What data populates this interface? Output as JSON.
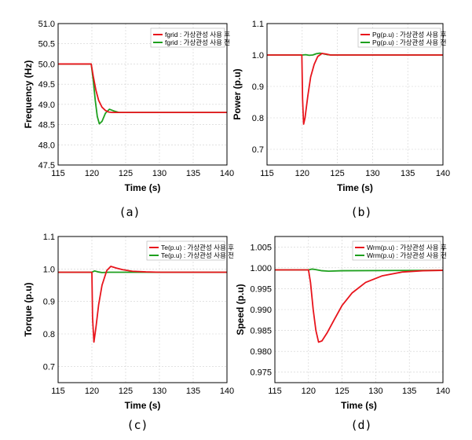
{
  "colors": {
    "red_series": "#e8141c",
    "green_series": "#1ea01e",
    "grid": "#d0d0d0",
    "frame": "#000000"
  },
  "chart_data": [
    {
      "id": "a",
      "type": "line",
      "caption": "(a)",
      "xlabel": "Time (s)",
      "ylabel": "Frequency (Hz)",
      "xlim": [
        115,
        140
      ],
      "ylim": [
        47.5,
        51.0
      ],
      "xticks": [
        "115",
        "120",
        "125",
        "130",
        "135",
        "140"
      ],
      "yticks": [
        "47.5",
        "48.0",
        "48.5",
        "49.0",
        "49.5",
        "50.0",
        "50.5",
        "51.0"
      ],
      "grid": true,
      "legend_position": "top-right",
      "series": [
        {
          "name": "fgrid : 가상관성 사용 후",
          "color": "red",
          "x": [
            115,
            119.9,
            120.2,
            120.6,
            121.0,
            121.5,
            122.0,
            122.5,
            123.0,
            124.0,
            140
          ],
          "y": [
            50.0,
            50.0,
            49.7,
            49.35,
            49.1,
            48.93,
            48.85,
            48.81,
            48.8,
            48.8,
            48.8
          ]
        },
        {
          "name": "fgrid : 가상관성 사용 전",
          "color": "green",
          "x": [
            115,
            119.9,
            120.2,
            120.5,
            120.8,
            121.1,
            121.5,
            122.0,
            122.6,
            123.2,
            124.0,
            125.0,
            140
          ],
          "y": [
            50.0,
            50.0,
            49.6,
            49.1,
            48.7,
            48.52,
            48.58,
            48.78,
            48.88,
            48.84,
            48.8,
            48.8,
            48.8
          ]
        }
      ]
    },
    {
      "id": "b",
      "type": "line",
      "caption": "(b)",
      "xlabel": "Time (s)",
      "ylabel": "Power (p.u)",
      "xlim": [
        115,
        140
      ],
      "ylim": [
        0.65,
        1.1
      ],
      "xticks": [
        "115",
        "120",
        "125",
        "130",
        "135",
        "140"
      ],
      "yticks": [
        "0.7",
        "0.8",
        "0.9",
        "1.0",
        "1.1"
      ],
      "grid": true,
      "legend_position": "top-right",
      "series": [
        {
          "name": "Pg(p.u) : 가상관성 사용 후",
          "color": "red",
          "x": [
            115,
            119.95,
            120.05,
            120.2,
            120.4,
            120.8,
            121.2,
            121.7,
            122.2,
            122.8,
            123.4,
            124.0,
            140
          ],
          "y": [
            1.0,
            1.0,
            0.86,
            0.78,
            0.8,
            0.87,
            0.93,
            0.97,
            0.995,
            1.005,
            1.003,
            1.0,
            1.0
          ]
        },
        {
          "name": "Pg(p.u) : 가상관성 사용 전",
          "color": "green",
          "x": [
            115,
            120.0,
            120.5,
            121.0,
            121.5,
            122.0,
            122.5,
            123.0,
            123.6,
            124.2,
            140
          ],
          "y": [
            1.0,
            1.0,
            1.001,
            0.999,
            1.0,
            1.004,
            1.006,
            1.004,
            1.001,
            1.0,
            1.0
          ]
        }
      ]
    },
    {
      "id": "c",
      "type": "line",
      "caption": "(c)",
      "xlabel": "Time (s)",
      "ylabel": "Torque (p.u)",
      "xlim": [
        115,
        140
      ],
      "ylim": [
        0.65,
        1.1
      ],
      "xticks": [
        "115",
        "120",
        "125",
        "130",
        "135",
        "140"
      ],
      "yticks": [
        "0.7",
        "0.8",
        "0.9",
        "1.0",
        "1.1"
      ],
      "grid": true,
      "legend_position": "top-right",
      "series": [
        {
          "name": "Te(p.u) : 가상관성 사용 후",
          "color": "red",
          "x": [
            115,
            120.0,
            120.1,
            120.3,
            120.6,
            121.0,
            121.5,
            122.2,
            122.8,
            123.6,
            124.5,
            126.0,
            128.0,
            130.0,
            140
          ],
          "y": [
            0.99,
            0.99,
            0.85,
            0.775,
            0.82,
            0.89,
            0.95,
            0.995,
            1.008,
            1.003,
            0.998,
            0.993,
            0.991,
            0.99,
            0.99
          ]
        },
        {
          "name": "Te(p.u) : 가상관성 사용 전",
          "color": "green",
          "x": [
            115,
            120.0,
            120.4,
            120.9,
            121.5,
            122.5,
            124.0,
            140
          ],
          "y": [
            0.99,
            0.99,
            0.994,
            0.991,
            0.989,
            0.99,
            0.99,
            0.99
          ]
        }
      ]
    },
    {
      "id": "d",
      "type": "line",
      "caption": "(d)",
      "xlabel": "Time (s)",
      "ylabel": "Speed (p.u)",
      "xlim": [
        115,
        140
      ],
      "ylim": [
        0.9725,
        1.0075
      ],
      "xticks": [
        "115",
        "120",
        "125",
        "130",
        "135",
        "140"
      ],
      "yticks": [
        "0.975",
        "0.980",
        "0.985",
        "0.990",
        "0.995",
        "1.000",
        "1.005"
      ],
      "grid": true,
      "legend_position": "top-right",
      "series": [
        {
          "name": "Wrm(p.u) : 가상관성 사용 후",
          "color": "red",
          "x": [
            115,
            120.0,
            120.3,
            120.7,
            121.1,
            121.5,
            122.0,
            122.8,
            123.8,
            125.0,
            126.5,
            128.5,
            131.0,
            134.0,
            137.0,
            140
          ],
          "y": [
            0.9995,
            0.9995,
            0.9965,
            0.99,
            0.985,
            0.9822,
            0.9825,
            0.9845,
            0.9875,
            0.991,
            0.994,
            0.9965,
            0.9981,
            0.999,
            0.9993,
            0.9994
          ]
        },
        {
          "name": "Wrm(p.u) : 가상관성 사용 전",
          "color": "green",
          "x": [
            115,
            120.0,
            120.5,
            121.0,
            122.0,
            123.0,
            125.0,
            140
          ],
          "y": [
            0.9995,
            0.9995,
            0.9997,
            0.9996,
            0.9993,
            0.9992,
            0.9993,
            0.9994
          ]
        }
      ]
    }
  ]
}
